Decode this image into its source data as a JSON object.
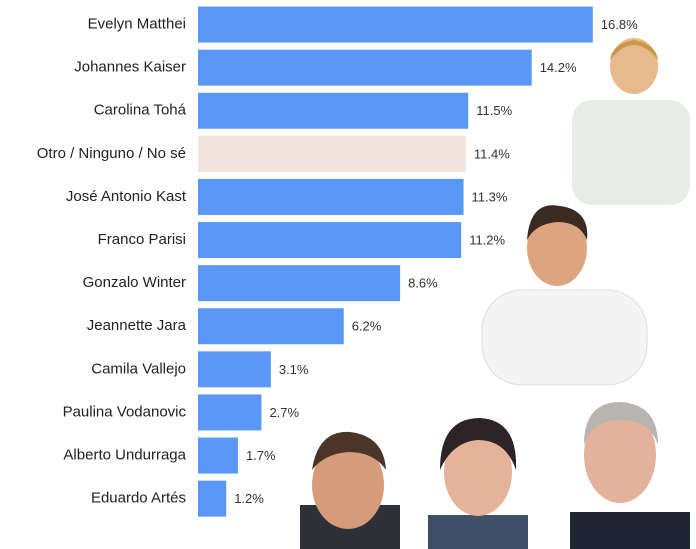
{
  "chart_data": {
    "type": "hbar",
    "categories": [
      "Evelyn Matthei",
      "Johannes Kaiser",
      "Carolina Tohá",
      "Otro / Ninguno / No sé",
      "José Antonio Kast",
      "Franco Parisi",
      "Gonzalo Winter",
      "Jeannette Jara",
      "Camila Vallejo",
      "Paulina Vodanovic",
      "Alberto Undurraga",
      "Eduardo Artés"
    ],
    "values": [
      16.8,
      14.2,
      11.5,
      11.4,
      11.3,
      11.2,
      8.6,
      6.2,
      3.1,
      2.7,
      1.7,
      1.2
    ],
    "value_labels": [
      "16.8%",
      "14.2%",
      "11.5%",
      "11.4%",
      "11.3%",
      "11.2%",
      "8.6%",
      "6.2%",
      "3.1%",
      "2.7%",
      "1.7%",
      "1.2%"
    ],
    "colors": [
      "#5b97f6",
      "#5b97f6",
      "#5b97f6",
      "#f2e5dd",
      "#5b97f6",
      "#5b97f6",
      "#5b97f6",
      "#5b97f6",
      "#5b97f6",
      "#5b97f6",
      "#5b97f6",
      "#5b97f6"
    ],
    "xlim": [
      0,
      20
    ]
  }
}
